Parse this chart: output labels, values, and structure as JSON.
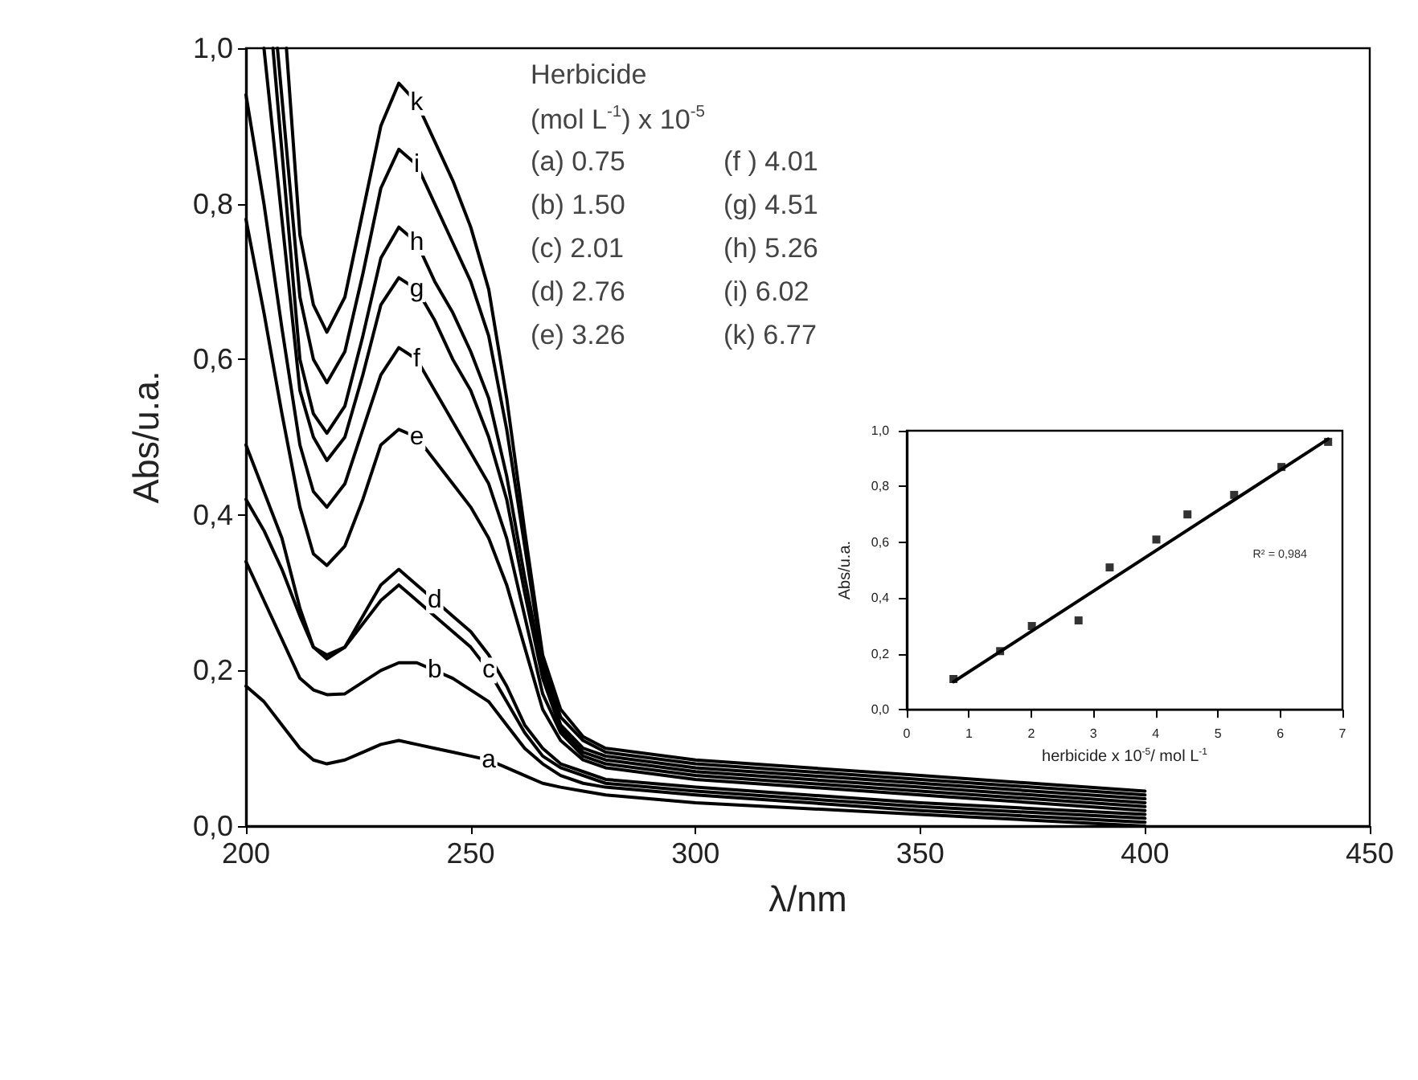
{
  "chart_data": [
    {
      "type": "line",
      "xlabel": "λ/nm",
      "ylabel": "Abs/u.a.",
      "xlim": [
        200,
        450
      ],
      "xticks": [
        200,
        250,
        300,
        350,
        400,
        450
      ],
      "ylim": [
        0,
        1
      ],
      "yticks": [
        {
          "value": 0,
          "label": "0,0"
        },
        {
          "value": 0.2,
          "label": "0,2"
        },
        {
          "value": 0.4,
          "label": "0,4"
        },
        {
          "value": 0.6,
          "label": "0,6"
        },
        {
          "value": 0.8,
          "label": "0,8"
        },
        {
          "value": 1,
          "label": "1,0"
        }
      ],
      "marker": "none",
      "grid": false,
      "legend": false,
      "series": [
        {
          "name": "a",
          "color": "#000000",
          "x": [
            200,
            204,
            208,
            212,
            215,
            218,
            222,
            226,
            230,
            234,
            238,
            242,
            246,
            250,
            254,
            258,
            262,
            266,
            270,
            275,
            280,
            300,
            350,
            400
          ],
          "values": [
            0.18,
            0.16,
            0.13,
            0.1,
            0.085,
            0.08,
            0.085,
            0.095,
            0.105,
            0.11,
            0.105,
            0.1,
            0.095,
            0.09,
            0.085,
            0.075,
            0.065,
            0.055,
            0.05,
            0.045,
            0.04,
            0.03,
            0.015,
            0.0
          ]
        },
        {
          "name": "b",
          "color": "#000000",
          "x": [
            200,
            204,
            208,
            212,
            215,
            218,
            222,
            226,
            230,
            234,
            238,
            242,
            246,
            250,
            254,
            258,
            262,
            266,
            270,
            275,
            280,
            300,
            350,
            400
          ],
          "values": [
            0.34,
            0.29,
            0.24,
            0.19,
            0.175,
            0.169,
            0.17,
            0.185,
            0.2,
            0.21,
            0.21,
            0.2,
            0.19,
            0.175,
            0.16,
            0.13,
            0.1,
            0.08,
            0.065,
            0.055,
            0.05,
            0.04,
            0.02,
            0.005
          ]
        },
        {
          "name": "c",
          "color": "#000000",
          "x": [
            200,
            204,
            208,
            212,
            215,
            218,
            222,
            226,
            230,
            234,
            238,
            242,
            246,
            250,
            254,
            258,
            262,
            266,
            270,
            275,
            280,
            300,
            350,
            400
          ],
          "values": [
            0.42,
            0.38,
            0.33,
            0.27,
            0.23,
            0.22,
            0.23,
            0.26,
            0.29,
            0.31,
            0.29,
            0.27,
            0.25,
            0.23,
            0.2,
            0.16,
            0.12,
            0.09,
            0.075,
            0.065,
            0.055,
            0.045,
            0.025,
            0.01
          ]
        },
        {
          "name": "d",
          "color": "#000000",
          "x": [
            200,
            204,
            208,
            212,
            215,
            218,
            222,
            226,
            230,
            234,
            238,
            242,
            246,
            250,
            254,
            258,
            262,
            266,
            270,
            275,
            280,
            300,
            350,
            400
          ],
          "values": [
            0.49,
            0.43,
            0.37,
            0.28,
            0.23,
            0.215,
            0.23,
            0.27,
            0.31,
            0.33,
            0.31,
            0.29,
            0.27,
            0.25,
            0.22,
            0.18,
            0.13,
            0.1,
            0.08,
            0.07,
            0.06,
            0.05,
            0.03,
            0.015
          ]
        },
        {
          "name": "e",
          "color": "#000000",
          "x": [
            200,
            204,
            208,
            212,
            215,
            218,
            222,
            226,
            230,
            234,
            238,
            242,
            246,
            250,
            254,
            258,
            262,
            266,
            270,
            275,
            280,
            300,
            350,
            400
          ],
          "values": [
            0.78,
            0.66,
            0.53,
            0.41,
            0.35,
            0.335,
            0.36,
            0.42,
            0.49,
            0.51,
            0.5,
            0.47,
            0.44,
            0.41,
            0.37,
            0.31,
            0.23,
            0.15,
            0.11,
            0.085,
            0.075,
            0.06,
            0.04,
            0.02
          ]
        },
        {
          "name": "f",
          "color": "#000000",
          "x": [
            200,
            204,
            208,
            212,
            215,
            218,
            222,
            226,
            230,
            234,
            238,
            242,
            246,
            250,
            254,
            258,
            262,
            266,
            270,
            275,
            280,
            300,
            350,
            400
          ],
          "values": [
            0.94,
            0.8,
            0.64,
            0.49,
            0.43,
            0.41,
            0.44,
            0.51,
            0.58,
            0.615,
            0.6,
            0.56,
            0.52,
            0.48,
            0.44,
            0.37,
            0.27,
            0.17,
            0.12,
            0.09,
            0.08,
            0.065,
            0.045,
            0.025
          ]
        },
        {
          "name": "g",
          "color": "#000000",
          "x": [
            204,
            212,
            215,
            218,
            222,
            226,
            230,
            234,
            238,
            242,
            246,
            250,
            254,
            258,
            262,
            266,
            270,
            275,
            280,
            300,
            350,
            400
          ],
          "values": [
            1.0,
            0.56,
            0.5,
            0.47,
            0.5,
            0.58,
            0.67,
            0.705,
            0.69,
            0.65,
            0.6,
            0.56,
            0.5,
            0.42,
            0.3,
            0.19,
            0.125,
            0.095,
            0.085,
            0.07,
            0.05,
            0.03
          ]
        },
        {
          "name": "h",
          "color": "#000000",
          "x": [
            206,
            212,
            215,
            218,
            222,
            226,
            230,
            234,
            238,
            242,
            246,
            250,
            254,
            258,
            262,
            266,
            270,
            275,
            280,
            300,
            350,
            400
          ],
          "values": [
            1.0,
            0.6,
            0.53,
            0.505,
            0.54,
            0.63,
            0.73,
            0.77,
            0.75,
            0.7,
            0.66,
            0.61,
            0.55,
            0.45,
            0.32,
            0.2,
            0.13,
            0.1,
            0.09,
            0.075,
            0.055,
            0.035
          ]
        },
        {
          "name": "i",
          "color": "#000000",
          "x": [
            207,
            212,
            215,
            218,
            222,
            226,
            230,
            234,
            238,
            242,
            246,
            250,
            254,
            258,
            262,
            266,
            270,
            275,
            280,
            300,
            350,
            400
          ],
          "values": [
            1.0,
            0.68,
            0.6,
            0.57,
            0.61,
            0.71,
            0.82,
            0.87,
            0.85,
            0.8,
            0.75,
            0.7,
            0.63,
            0.51,
            0.36,
            0.21,
            0.14,
            0.11,
            0.095,
            0.08,
            0.06,
            0.04
          ]
        },
        {
          "name": "k",
          "color": "#000000",
          "x": [
            209,
            212,
            215,
            218,
            222,
            226,
            230,
            234,
            238,
            242,
            246,
            250,
            254,
            258,
            262,
            266,
            270,
            275,
            280,
            300,
            350,
            400
          ],
          "values": [
            1.0,
            0.76,
            0.67,
            0.635,
            0.68,
            0.79,
            0.9,
            0.955,
            0.93,
            0.88,
            0.83,
            0.77,
            0.69,
            0.55,
            0.38,
            0.22,
            0.15,
            0.115,
            0.1,
            0.085,
            0.065,
            0.045
          ]
        }
      ],
      "annotations": [
        "Herbicide",
        "(mol L$^{-1}$) x 10$^{-5}$",
        "(a) 0.75",
        "(f ) 4.01",
        "(b) 1.50",
        "(g) 4.51",
        "(c) 2.01",
        "(h) 5.26",
        "(d) 2.76",
        "(i) 6.02",
        "(e) 3.26",
        "(k) 6.77"
      ]
    },
    {
      "type": "scatter",
      "xlabel": "herbicide x 10$^{-5}$/ mol L$^{-1}$",
      "ylabel": "Abs/u.a.",
      "xlim": [
        0,
        7
      ],
      "xticks": [
        0,
        1,
        2,
        3,
        4,
        5,
        6,
        7
      ],
      "ylim": [
        0,
        1
      ],
      "yticks": [
        {
          "value": 0,
          "label": "0,0"
        },
        {
          "value": 0.2,
          "label": "0,2"
        },
        {
          "value": 0.4,
          "label": "0,4"
        },
        {
          "value": 0.6,
          "label": "0,6"
        },
        {
          "value": 0.8,
          "label": "0,8"
        },
        {
          "value": 1,
          "label": "1,0"
        }
      ],
      "marker": "square",
      "grid": false,
      "legend": false,
      "series": [
        {
          "color": "#000000",
          "x": [
            0.75,
            1.5,
            2.01,
            2.76,
            3.26,
            4.01,
            4.51,
            5.26,
            6.02,
            6.77
          ],
          "values": [
            0.11,
            0.21,
            0.3,
            0.32,
            0.51,
            0.61,
            0.7,
            0.77,
            0.87,
            0.96
          ]
        },
        {
          "type": "line",
          "marker": "none",
          "color": "#000000",
          "x": [
            0.75,
            6.77
          ],
          "values": [
            0.1,
            0.97
          ]
        }
      ],
      "annotations": [
        "R² = 0,984"
      ]
    }
  ]
}
